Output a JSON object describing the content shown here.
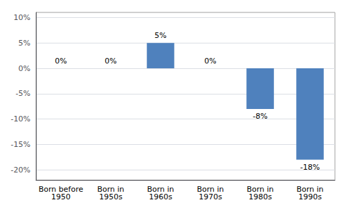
{
  "chart_data": {
    "type": "bar",
    "categories": [
      "Born before\n1950",
      "Born in\n1950s",
      "Born in\n1960s",
      "Born in\n1970s",
      "Born in\n1980s",
      "Born in\n1990s"
    ],
    "values": [
      0,
      0,
      5,
      0,
      -8,
      -18
    ],
    "value_labels": [
      "0%",
      "0%",
      "5%",
      "0%",
      "-8%",
      "-18%"
    ],
    "data_labels": true,
    "color": "#4f81bd",
    "ylim": [
      -22,
      11
    ],
    "yticks": [
      {
        "value": -20,
        "label": "-20%"
      },
      {
        "value": -15,
        "label": "-15%"
      },
      {
        "value": -10,
        "label": "-10%"
      },
      {
        "value": -5,
        "label": "-5%"
      },
      {
        "value": 0,
        "label": "0%"
      },
      {
        "value": 5,
        "label": "5%"
      },
      {
        "value": 10,
        "label": "10%"
      }
    ],
    "grid": true
  }
}
